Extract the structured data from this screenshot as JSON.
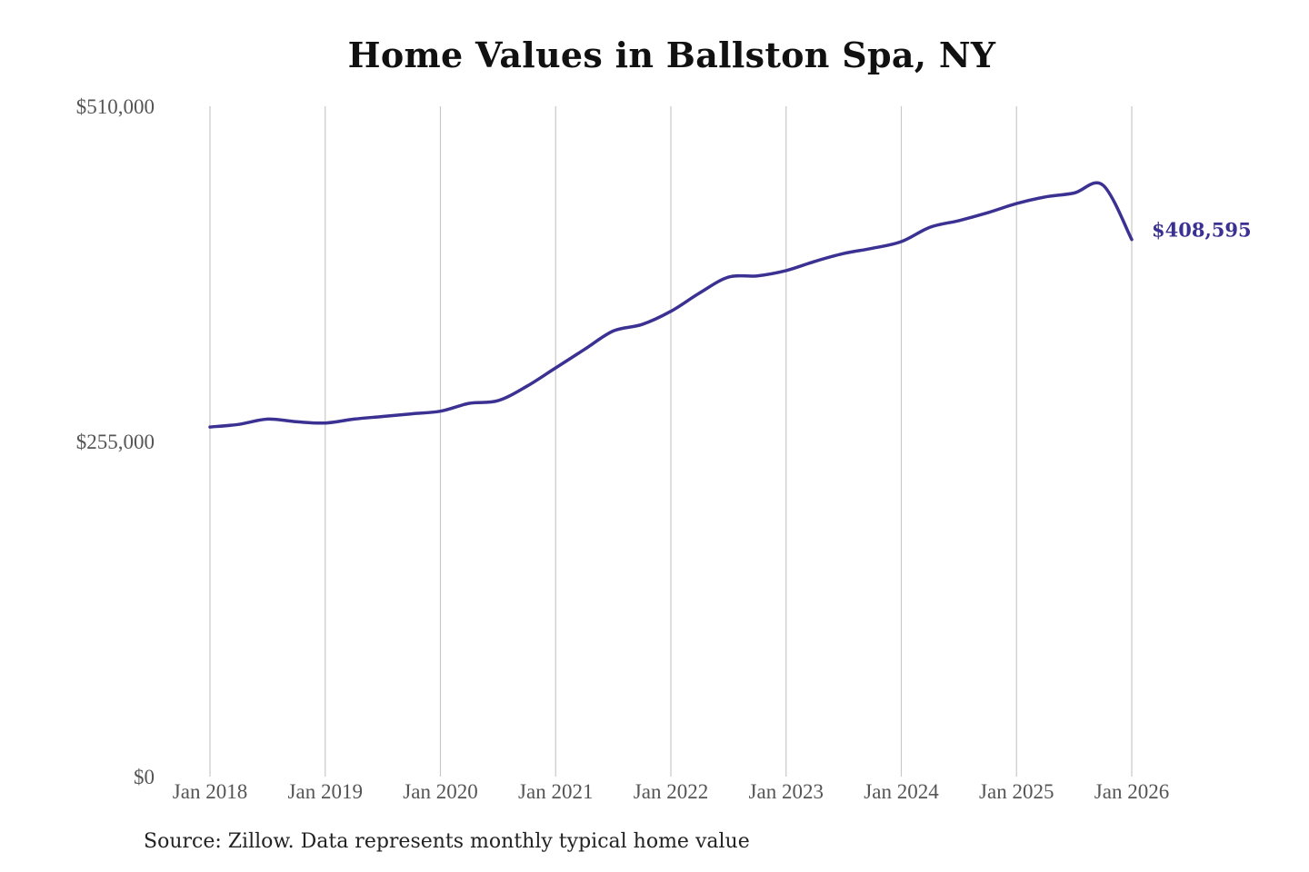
{
  "chart_data": {
    "type": "line",
    "title": "Home Values in Ballston Spa, NY",
    "xlabel": "",
    "ylabel": "",
    "source": "Source: Zillow. Data represents monthly typical home value",
    "ylim": [
      0,
      510000
    ],
    "y_ticks": [
      {
        "value": 510000,
        "label": "$510,000"
      },
      {
        "value": 255000,
        "label": "$255,000"
      },
      {
        "value": 0,
        "label": "$0"
      }
    ],
    "x_ticks": [
      {
        "value": "2018-01",
        "label": "Jan 2018"
      },
      {
        "value": "2019-01",
        "label": "Jan 2019"
      },
      {
        "value": "2020-01",
        "label": "Jan 2020"
      },
      {
        "value": "2021-01",
        "label": "Jan 2021"
      },
      {
        "value": "2022-01",
        "label": "Jan 2022"
      },
      {
        "value": "2023-01",
        "label": "Jan 2023"
      },
      {
        "value": "2024-01",
        "label": "Jan 2024"
      },
      {
        "value": "2025-01",
        "label": "Jan 2025"
      },
      {
        "value": "2026-01",
        "label": "Jan 2026"
      }
    ],
    "grid": "vertical lines at x ticks",
    "line_color": "#3b3192",
    "end_label": "$408,595",
    "series": [
      {
        "x": [
          "2018-01",
          "2018-04",
          "2018-07",
          "2018-10",
          "2019-01",
          "2019-04",
          "2019-07",
          "2019-10",
          "2020-01",
          "2020-04",
          "2020-07",
          "2020-10",
          "2021-01",
          "2021-04",
          "2021-07",
          "2021-10",
          "2022-01",
          "2022-04",
          "2022-07",
          "2022-10",
          "2023-01",
          "2023-04",
          "2023-07",
          "2023-10",
          "2024-01",
          "2024-04",
          "2024-07",
          "2024-10",
          "2025-01",
          "2025-04",
          "2025-07",
          "2025-10",
          "2026-01"
        ],
        "y": [
          266000,
          268000,
          272000,
          270000,
          269000,
          272000,
          274000,
          276000,
          278000,
          284000,
          286000,
          297000,
          311000,
          325000,
          339000,
          344000,
          354000,
          368000,
          380000,
          381000,
          385000,
          392000,
          398000,
          402000,
          407000,
          418000,
          423000,
          429000,
          436000,
          441000,
          444000,
          450000,
          408595
        ]
      }
    ]
  }
}
